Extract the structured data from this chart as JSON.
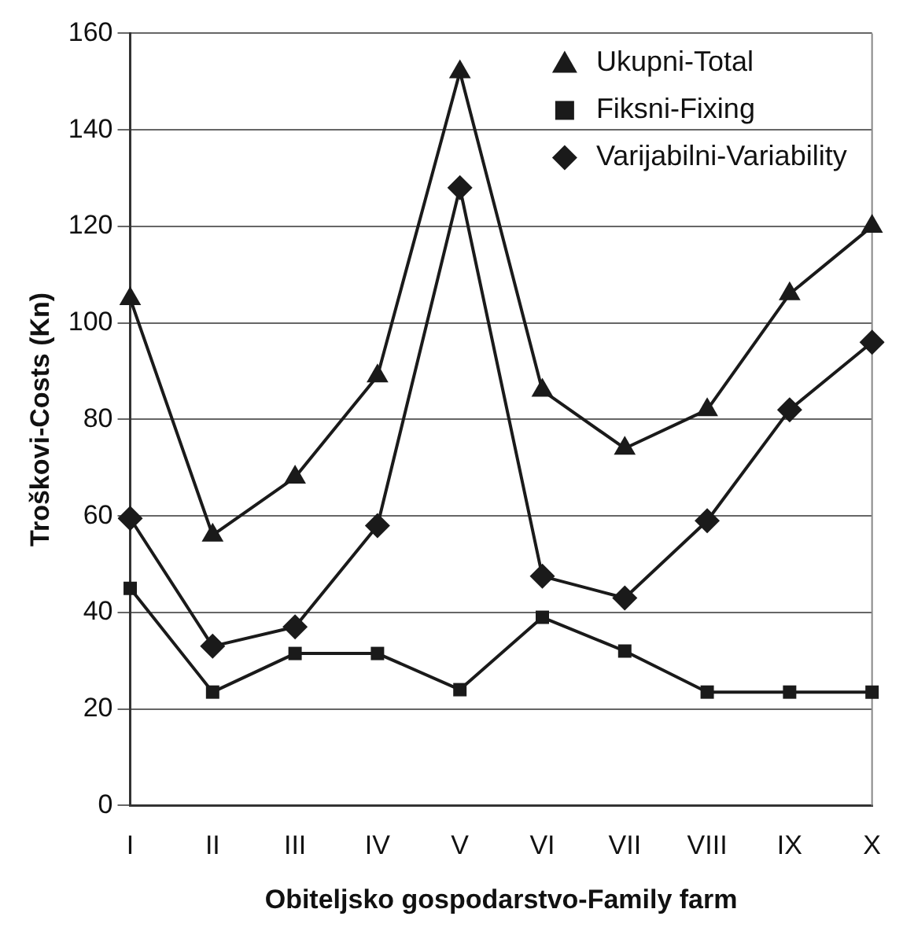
{
  "chart_data": {
    "type": "line",
    "xlabel": "Obiteljsko gospodarstvo-Family farm",
    "ylabel": "Troškovi-Costs (Kn)",
    "categories": [
      "I",
      "II",
      "III",
      "IV",
      "V",
      "VI",
      "VII",
      "VIII",
      "IX",
      "X"
    ],
    "series": [
      {
        "name": "Ukupni-Total",
        "color": "#1a1a1a",
        "marker": "triangle",
        "values": [
          105,
          56,
          68,
          89,
          152,
          86,
          74,
          82,
          106,
          120
        ]
      },
      {
        "name": "Fiksni-Fixing",
        "color": "#1a1a1a",
        "marker": "square",
        "values": [
          45,
          23.5,
          31.5,
          31.5,
          24,
          39,
          32,
          23.5,
          23.5,
          23.5
        ]
      },
      {
        "name": "Varijabilni-Variability",
        "color": "#1a1a1a",
        "marker": "diamond",
        "values": [
          59.5,
          33,
          37,
          58,
          128,
          47.5,
          43,
          59,
          82,
          96
        ]
      }
    ],
    "ylim": [
      0,
      160
    ],
    "yticks": [
      0,
      20,
      40,
      60,
      80,
      100,
      120,
      140,
      160
    ],
    "grid": "y",
    "legend": "top right",
    "line_style": "solid"
  }
}
